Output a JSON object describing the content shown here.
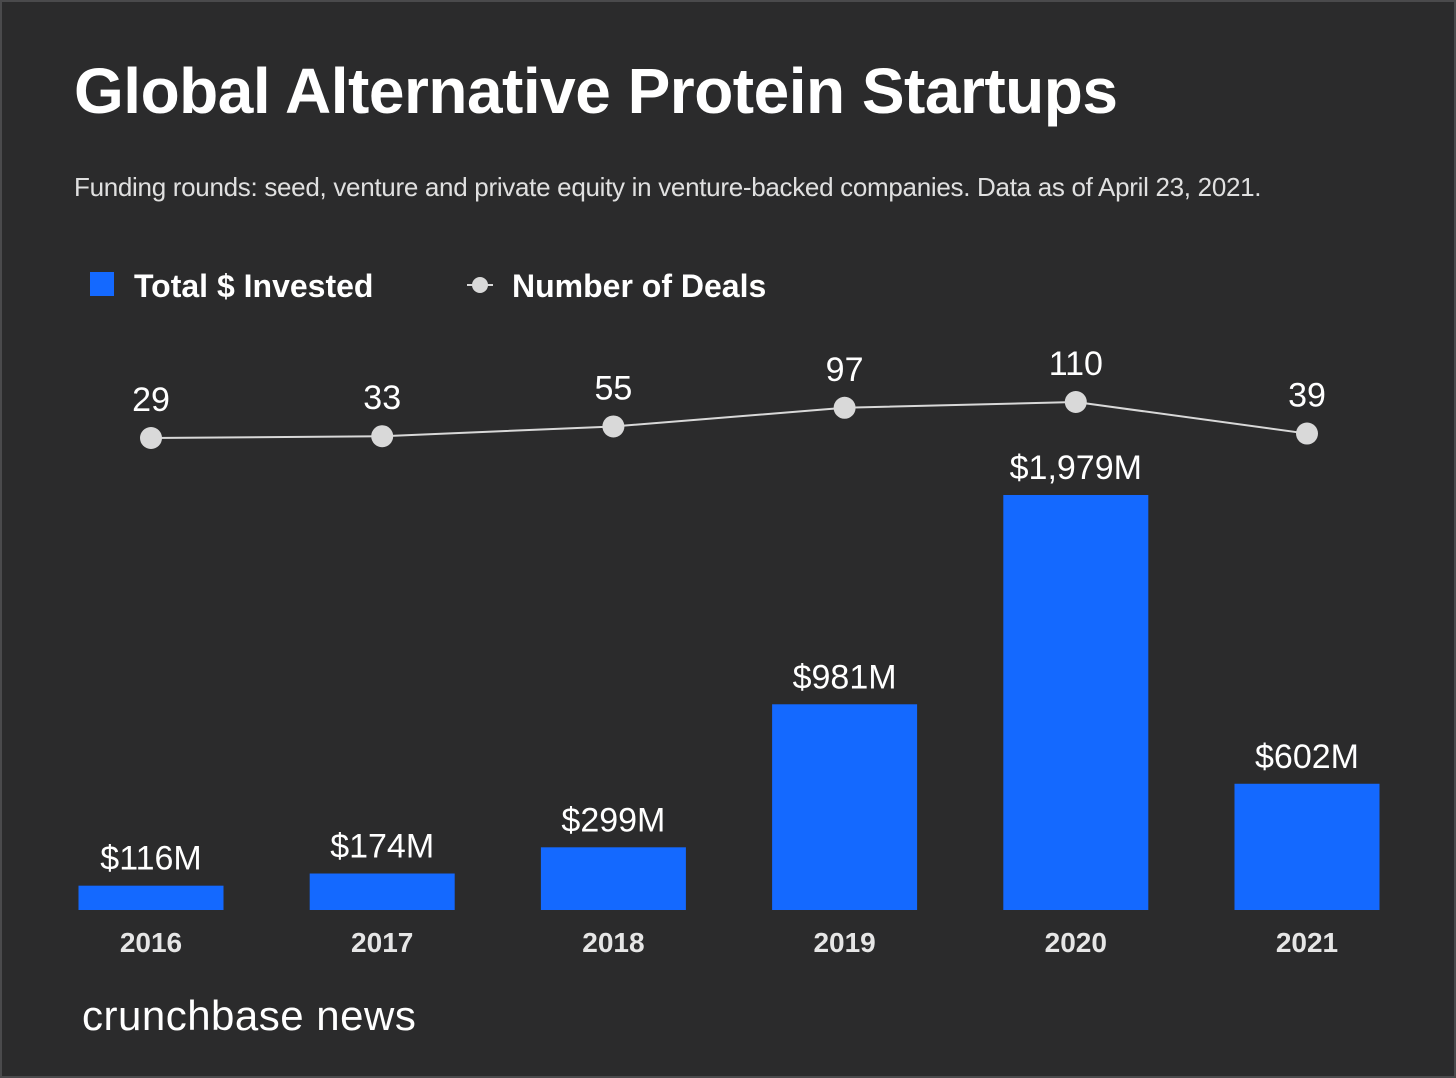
{
  "chart_data": {
    "type": "bar",
    "title": "Global Alternative Protein Startups",
    "subtitle": "Funding rounds: seed, venture and private equity in venture-backed companies. Data as of April 23, 2021.",
    "categories": [
      "2016",
      "2017",
      "2018",
      "2019",
      "2020",
      "2021"
    ],
    "series": [
      {
        "name": "Total $ Invested",
        "type": "bar",
        "unit": "$M",
        "values": [
          116,
          174,
          299,
          981,
          1979,
          602
        ],
        "labels": [
          "$116M",
          "$174M",
          "$299M",
          "$981M",
          "$1,979M",
          "$602M"
        ],
        "color": "#1469ff"
      },
      {
        "name": "Number of Deals",
        "type": "line",
        "values": [
          29,
          33,
          55,
          97,
          110,
          39
        ],
        "labels": [
          "29",
          "33",
          "55",
          "97",
          "110",
          "39"
        ],
        "color": "#d9d9d9"
      }
    ],
    "legend": "top-left",
    "grid": false
  },
  "brand": "crunchbase news",
  "colors": {
    "background": "#2b2b2c",
    "bar": "#1469ff",
    "line": "#d9d9d9",
    "text": "#ffffff"
  }
}
